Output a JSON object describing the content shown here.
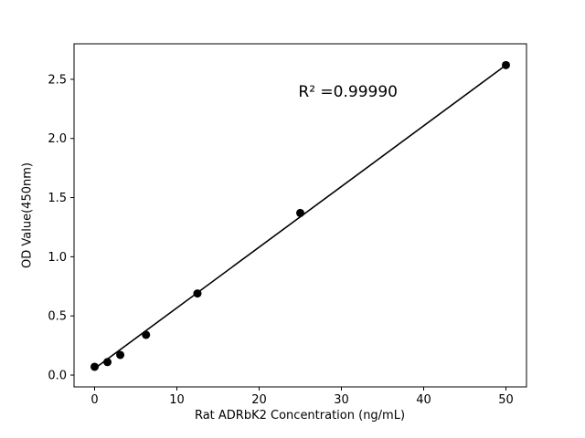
{
  "chart_data": {
    "type": "scatter",
    "title": "",
    "xlabel": "Rat ADRbK2 Concentration (ng/mL)",
    "ylabel": "OD Value(450nm)",
    "annotation": {
      "text": "R² =0.99990",
      "x": 30.8,
      "y": 2.39
    },
    "x": [
      0,
      1.56,
      3.12,
      6.25,
      12.5,
      25,
      50
    ],
    "y": [
      0.07,
      0.11,
      0.17,
      0.34,
      0.69,
      1.37,
      2.62
    ],
    "fit_line": {
      "x": [
        0,
        50
      ],
      "y": [
        0.055,
        2.62
      ]
    },
    "xlim": [
      -2.5,
      52.5
    ],
    "ylim": [
      -0.1,
      2.8
    ],
    "xticks": [
      0,
      10,
      20,
      30,
      40,
      50
    ],
    "yticks": [
      0.0,
      0.5,
      1.0,
      1.5,
      2.0,
      2.5
    ],
    "grid": false,
    "legend": null,
    "marker_color": "#000000",
    "line_color": "#000000",
    "background": "#ffffff"
  }
}
